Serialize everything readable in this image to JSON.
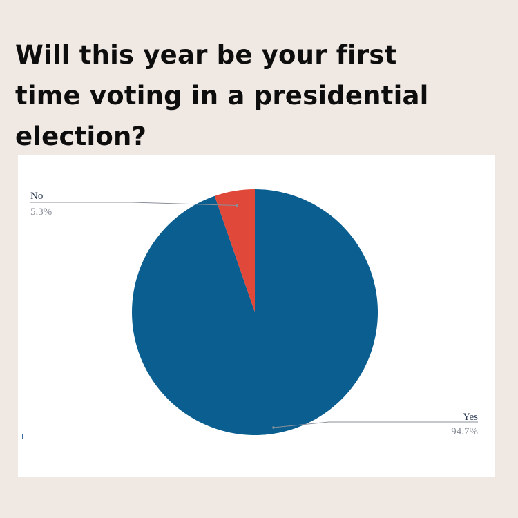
{
  "title": "Will this year be your first\ntime voting in a presidential\nelection?",
  "chart_data": {
    "type": "pie",
    "slices": [
      {
        "label": "Yes",
        "value": 94.7,
        "percent_label": "94.7%",
        "color": "#0b5f90"
      },
      {
        "label": "No",
        "value": 5.3,
        "percent_label": "5.3%",
        "color": "#e0493a"
      }
    ],
    "legend": "none"
  },
  "colors": {
    "background": "#f0e8e3",
    "card": "#ffffff",
    "title": "#0d0d0d"
  }
}
